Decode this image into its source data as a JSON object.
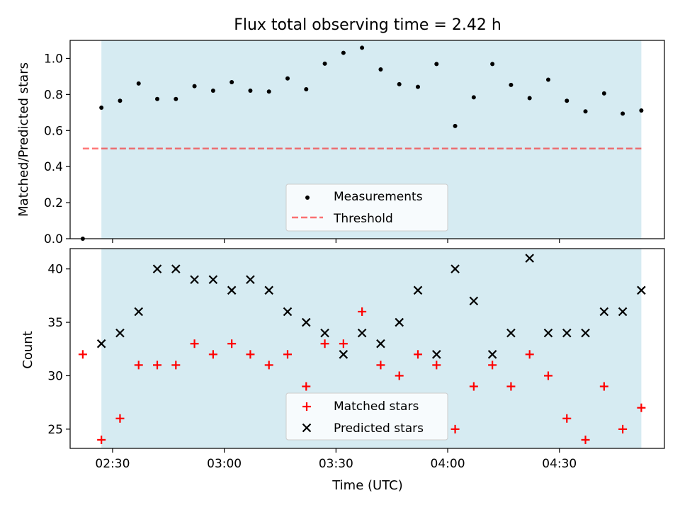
{
  "figure": {
    "title": "Flux total observing time = 2.42 h",
    "xlabel": "Time (UTC)"
  },
  "colors": {
    "shade": "#add8e6",
    "measurements": "#000000",
    "threshold": "#ff0000",
    "matched": "#ff0000",
    "predicted": "#000000"
  },
  "chart_data": [
    {
      "type": "scatter",
      "name": "ratio-panel",
      "ylabel": "Matched/Predicted stars",
      "xlim_minutes": [
        2.31,
        4.97
      ],
      "ylim": [
        0,
        1.1
      ],
      "y_ticks": [
        0.0,
        0.2,
        0.4,
        0.6,
        0.8,
        1.0
      ],
      "y_tick_labels": [
        "0.0",
        "0.2",
        "0.4",
        "0.6",
        "0.8",
        "1.0"
      ],
      "shaded_region": [
        "02:27",
        "04:52"
      ],
      "threshold": {
        "name": "Threshold",
        "value": 0.5,
        "x_range": [
          "02:22",
          "04:52"
        ]
      },
      "series": [
        {
          "name": "Measurements",
          "x": [
            "02:22",
            "02:27",
            "02:32",
            "02:37",
            "02:42",
            "02:47",
            "02:52",
            "02:57",
            "03:02",
            "03:07",
            "03:12",
            "03:17",
            "03:22",
            "03:27",
            "03:32",
            "03:37",
            "03:42",
            "03:47",
            "03:52",
            "03:57",
            "04:02",
            "04:07",
            "04:12",
            "04:17",
            "04:22",
            "04:27",
            "04:32",
            "04:37",
            "04:42",
            "04:47",
            "04:52"
          ],
          "values": [
            0.0,
            0.727,
            0.765,
            0.861,
            0.775,
            0.775,
            0.846,
            0.821,
            0.868,
            0.821,
            0.816,
            0.889,
            0.829,
            0.971,
            1.031,
            1.059,
            0.939,
            0.857,
            0.842,
            0.969,
            0.625,
            0.784,
            0.969,
            0.853,
            0.78,
            0.882,
            0.765,
            0.706,
            0.806,
            0.694,
            0.711
          ]
        }
      ],
      "legend": {
        "position": "lower-center",
        "entries": [
          "Measurements",
          "Threshold"
        ]
      },
      "grid": false
    },
    {
      "type": "scatter",
      "name": "count-panel",
      "ylabel": "Count",
      "ylim": [
        23.2,
        41.9
      ],
      "y_ticks": [
        25,
        30,
        35,
        40
      ],
      "y_tick_labels": [
        "25",
        "30",
        "35",
        "40"
      ],
      "x_tick_labels": [
        "02:30",
        "03:00",
        "03:30",
        "04:00",
        "04:30"
      ],
      "shaded_region": [
        "02:27",
        "04:52"
      ],
      "series": [
        {
          "name": "Matched stars",
          "marker": "+",
          "x": [
            "02:22",
            "02:27",
            "02:32",
            "02:37",
            "02:42",
            "02:47",
            "02:52",
            "02:57",
            "03:02",
            "03:07",
            "03:12",
            "03:17",
            "03:22",
            "03:27",
            "03:32",
            "03:37",
            "03:42",
            "03:47",
            "03:52",
            "03:57",
            "04:02",
            "04:07",
            "04:12",
            "04:17",
            "04:22",
            "04:27",
            "04:32",
            "04:37",
            "04:42",
            "04:47",
            "04:52"
          ],
          "values": [
            32,
            24,
            26,
            31,
            31,
            31,
            33,
            32,
            33,
            32,
            31,
            32,
            29,
            33,
            33,
            36,
            31,
            30,
            32,
            31,
            25,
            29,
            31,
            29,
            32,
            30,
            26,
            24,
            29,
            25,
            27
          ]
        },
        {
          "name": "Predicted stars",
          "marker": "x",
          "x": [
            "02:27",
            "02:32",
            "02:37",
            "02:42",
            "02:47",
            "02:52",
            "02:57",
            "03:02",
            "03:07",
            "03:12",
            "03:17",
            "03:22",
            "03:27",
            "03:32",
            "03:37",
            "03:42",
            "03:47",
            "03:52",
            "03:57",
            "04:02",
            "04:07",
            "04:12",
            "04:17",
            "04:22",
            "04:27",
            "04:32",
            "04:37",
            "04:42",
            "04:47",
            "04:52"
          ],
          "values": [
            33,
            34,
            36,
            40,
            40,
            39,
            39,
            38,
            39,
            38,
            36,
            35,
            34,
            32,
            34,
            33,
            35,
            38,
            32,
            40,
            37,
            32,
            34,
            41,
            34,
            34,
            34,
            36,
            36,
            38
          ]
        }
      ],
      "legend": {
        "position": "lower-center",
        "entries": [
          "Matched stars",
          "Predicted stars"
        ]
      },
      "grid": false
    }
  ]
}
